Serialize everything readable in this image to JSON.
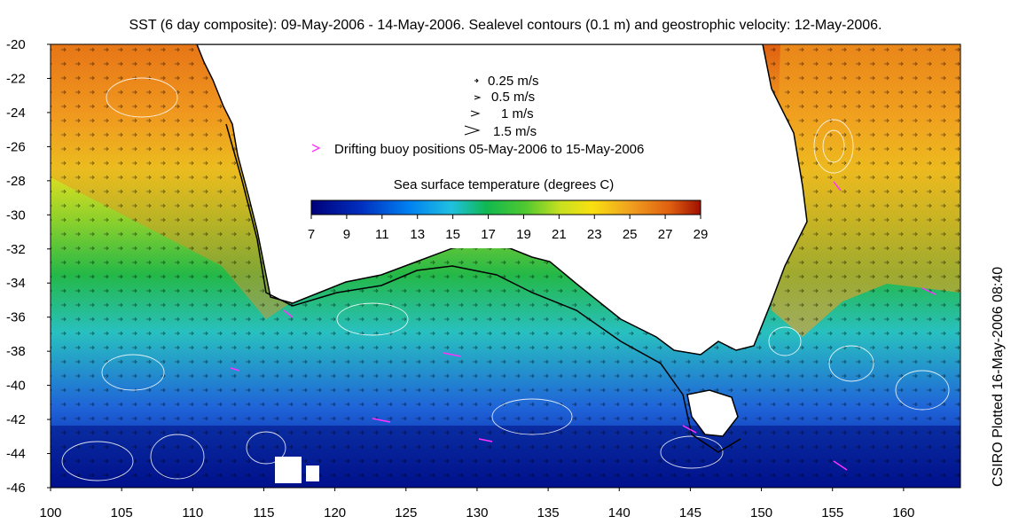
{
  "title": "SST (6 day composite): 09-May-2006 - 14-May-2006. Sealevel contours (0.1 m) and geostrophic velocity: 12-May-2006.",
  "side_note": "CSIRO Plotted 16-May-2006 08:40",
  "map": {
    "x_ticks": [
      "100",
      "105",
      "110",
      "115",
      "120",
      "125",
      "130",
      "135",
      "140",
      "145",
      "150",
      "155",
      "160"
    ],
    "y_ticks": [
      "-20",
      "-22",
      "-24",
      "-26",
      "-28",
      "-30",
      "-32",
      "-34",
      "-36",
      "-38",
      "-40",
      "-42",
      "-44",
      "-46"
    ],
    "lon_range": [
      100,
      164
    ],
    "lat_range": [
      -46,
      -20
    ]
  },
  "legend": {
    "velocity_scale": [
      {
        "label": "0.25 m/s",
        "speed": 0.25
      },
      {
        "label": "0.5 m/s",
        "speed": 0.5
      },
      {
        "label": "1 m/s",
        "speed": 1
      },
      {
        "label": "1.5 m/s",
        "speed": 1.5
      }
    ],
    "buoy_label": "Drifting buoy positions 05-May-2006 to 15-May-2006",
    "buoy_color": "#ff33ff"
  },
  "colorbar": {
    "title": "Sea surface temperature (degrees C)",
    "ticks": [
      "7",
      "9",
      "11",
      "13",
      "15",
      "17",
      "19",
      "21",
      "23",
      "25",
      "27",
      "29"
    ],
    "range": [
      7,
      29
    ],
    "colors": [
      "#00007a",
      "#0030c0",
      "#0070e8",
      "#20b0e8",
      "#00c0b0",
      "#10b850",
      "#50c830",
      "#b0e020",
      "#f0e010",
      "#f0a020",
      "#e06010",
      "#a01000"
    ]
  },
  "colors": {
    "land": "#ffffff",
    "coastline": "#000000",
    "contour": "#ffffff",
    "vector": "#000000"
  }
}
